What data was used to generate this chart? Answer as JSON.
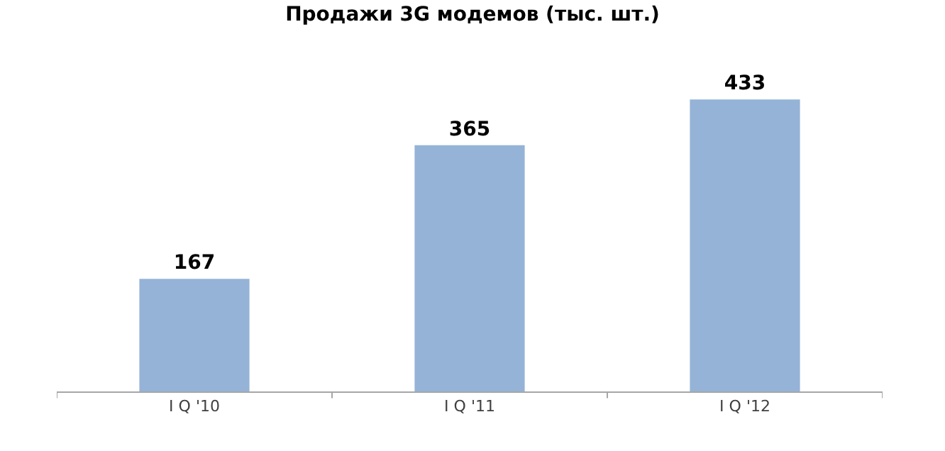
{
  "chart_data": {
    "type": "bar",
    "title": "Продажи 3G модемов (тыс. шт.)",
    "categories": [
      "I Q '10",
      "I Q '11",
      "I Q '12"
    ],
    "values": [
      167,
      365,
      433
    ],
    "color": "#95b3d7",
    "data_labels": true
  }
}
